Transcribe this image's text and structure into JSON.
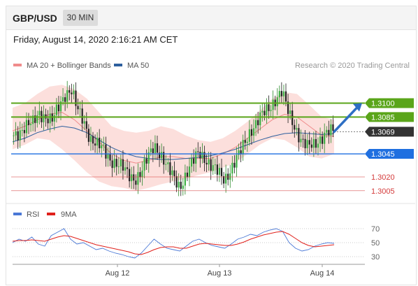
{
  "header": {
    "pair": "GBP/USD",
    "timeframe": "30 MIN"
  },
  "datetime": "Friday, August 14, 2020 2:16:21 AM CET",
  "credit": "Research © 2020 Trading Central",
  "chart_data": {
    "type": "candlestick",
    "legend": [
      {
        "name": "MA 20 + Bollinger Bands",
        "color": "#f08c8c"
      },
      {
        "name": "MA 50",
        "color": "#2d5f9e"
      }
    ],
    "price_ylim": [
      1.2998,
      1.313
    ],
    "levels": [
      {
        "value": 1.31,
        "label": "1.3100",
        "kind": "resistance",
        "color": "#5aa51a"
      },
      {
        "value": 1.3085,
        "label": "1.3085",
        "kind": "resistance",
        "color": "#5aa51a"
      },
      {
        "value": 1.3069,
        "label": "1.3069",
        "kind": "last",
        "color": "#333333"
      },
      {
        "value": 1.3045,
        "label": "1.3045",
        "kind": "pivot",
        "color": "#1f6fe0"
      },
      {
        "value": 1.302,
        "label": "1.3020",
        "kind": "support",
        "color": "#d43a3a"
      },
      {
        "value": 1.3005,
        "label": "1.3005",
        "kind": "support",
        "color": "#d43a3a"
      }
    ],
    "close_path": [
      1.3065,
      1.307,
      1.3075,
      1.3078,
      1.309,
      1.3085,
      1.308,
      1.3095,
      1.311,
      1.3115,
      1.3092,
      1.308,
      1.3062,
      1.3055,
      1.305,
      1.304,
      1.3035,
      1.303,
      1.3022,
      1.3018,
      1.3025,
      1.304,
      1.3055,
      1.3045,
      1.303,
      1.302,
      1.301,
      1.3022,
      1.3035,
      1.3048,
      1.304,
      1.303,
      1.3025,
      1.3018,
      1.3028,
      1.304,
      1.3055,
      1.307,
      1.3078,
      1.3088,
      1.3095,
      1.3105,
      1.3112,
      1.309,
      1.3075,
      1.306,
      1.3052,
      1.3055,
      1.3062,
      1.3068,
      1.3069
    ],
    "bands": {
      "upper": [
        1.3095,
        1.31,
        1.311,
        1.3118,
        1.312,
        1.3115,
        1.3105,
        1.309,
        1.3075,
        1.307,
        1.3068,
        1.307,
        1.3075,
        1.3072,
        1.3065,
        1.306,
        1.3058,
        1.3062,
        1.307,
        1.308,
        1.3092,
        1.3105,
        1.3112,
        1.311,
        1.3098,
        1.3085,
        1.3082
      ],
      "lower": [
        1.305,
        1.3055,
        1.3062,
        1.306,
        1.305,
        1.3038,
        1.3025,
        1.3015,
        1.301,
        1.3008,
        1.3005,
        1.3008,
        1.3012,
        1.3015,
        1.3018,
        1.3022,
        1.3025,
        1.303,
        1.3035,
        1.3045,
        1.3055,
        1.3062,
        1.306,
        1.3052,
        1.3042,
        1.304,
        1.3045
      ],
      "ma20": [
        1.307,
        1.3075,
        1.3082,
        1.3088,
        1.309,
        1.3082,
        1.307,
        1.3058,
        1.3045,
        1.3038,
        1.3035,
        1.3038,
        1.3042,
        1.3042,
        1.304,
        1.304,
        1.304,
        1.3045,
        1.3052,
        1.3062,
        1.3072,
        1.3082,
        1.3088,
        1.3085,
        1.3075,
        1.3065,
        1.3064
      ],
      "ma50": [
        1.3058,
        1.3062,
        1.3068,
        1.3072,
        1.3075,
        1.3073,
        1.3068,
        1.306,
        1.3052,
        1.3046,
        1.3042,
        1.304,
        1.3039,
        1.3039,
        1.304,
        1.3041,
        1.3043,
        1.3046,
        1.305,
        1.3055,
        1.306,
        1.3064,
        1.3067,
        1.3068,
        1.3067,
        1.3066,
        1.3067
      ]
    },
    "forecast_arrow": {
      "from": 1.3069,
      "to": 1.31
    },
    "rsi": {
      "legend": [
        {
          "name": "RSI",
          "color": "#4a78d6"
        },
        {
          "name": "9MA",
          "color": "#e0201b"
        }
      ],
      "ylim": [
        25,
        75
      ],
      "ticks": [
        70,
        50,
        30
      ],
      "tick_labels": [
        "70",
        "50",
        "30"
      ],
      "rsi_values": [
        50,
        55,
        52,
        58,
        48,
        45,
        60,
        65,
        70,
        55,
        48,
        50,
        45,
        40,
        42,
        38,
        35,
        33,
        30,
        28,
        35,
        45,
        55,
        48,
        42,
        40,
        38,
        45,
        52,
        55,
        50,
        46,
        44,
        42,
        48,
        55,
        58,
        62,
        60,
        65,
        68,
        70,
        66,
        50,
        42,
        38,
        40,
        45,
        48,
        50,
        49
      ],
      "ma9_values": [
        52,
        53,
        53,
        54,
        53,
        52,
        55,
        58,
        60,
        59,
        56,
        53,
        50,
        47,
        45,
        43,
        41,
        39,
        37,
        34,
        33,
        36,
        40,
        43,
        44,
        44,
        42,
        42,
        45,
        48,
        49,
        48,
        47,
        46,
        46,
        48,
        51,
        55,
        58,
        61,
        63,
        65,
        66,
        62,
        56,
        50,
        46,
        44,
        45,
        46,
        47
      ]
    },
    "x_ticks": [
      "Aug 12",
      "Aug 13",
      "Aug 14"
    ]
  }
}
